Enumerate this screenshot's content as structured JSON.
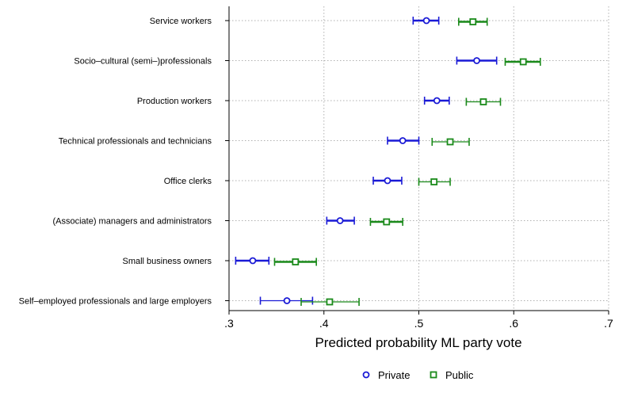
{
  "chart_data": {
    "type": "scatter",
    "xlabel": "Predicted probability ML party vote",
    "xlim": [
      0.3,
      0.7
    ],
    "xticks": [
      0.3,
      0.4,
      0.5,
      0.6,
      0.7
    ],
    "xtick_labels": [
      ".3",
      ".4",
      ".5",
      ".6",
      ".7"
    ],
    "categories": [
      "Service workers",
      "Socio–cultural (semi–)professionals",
      "Production workers",
      "Technical professionals and technicians",
      "Office clerks",
      "(Associate) managers and administrators",
      "Small business owners",
      "Self–employed professionals and large employers"
    ],
    "grid": true,
    "legend_position": "bottom",
    "series": [
      {
        "name": "Private",
        "color": "#1a1ad6",
        "marker": "circle",
        "values": [
          0.508,
          0.561,
          0.519,
          0.483,
          0.467,
          0.417,
          0.325,
          0.361
        ],
        "ci_low": [
          0.494,
          0.54,
          0.506,
          0.467,
          0.452,
          0.403,
          0.307,
          0.333
        ],
        "ci_high": [
          0.521,
          0.582,
          0.532,
          0.5,
          0.482,
          0.432,
          0.342,
          0.388
        ],
        "ci_bold": [
          true,
          true,
          true,
          true,
          true,
          true,
          true,
          false
        ]
      },
      {
        "name": "Public",
        "color": "#1a8a1a",
        "marker": "square",
        "values": [
          0.557,
          0.61,
          0.568,
          0.533,
          0.516,
          0.466,
          0.37,
          0.406
        ],
        "ci_low": [
          0.542,
          0.591,
          0.55,
          0.514,
          0.5,
          0.449,
          0.348,
          0.376
        ],
        "ci_high": [
          0.572,
          0.628,
          0.586,
          0.553,
          0.533,
          0.483,
          0.392,
          0.437
        ],
        "ci_bold": [
          true,
          true,
          false,
          false,
          false,
          true,
          true,
          false
        ]
      }
    ]
  }
}
